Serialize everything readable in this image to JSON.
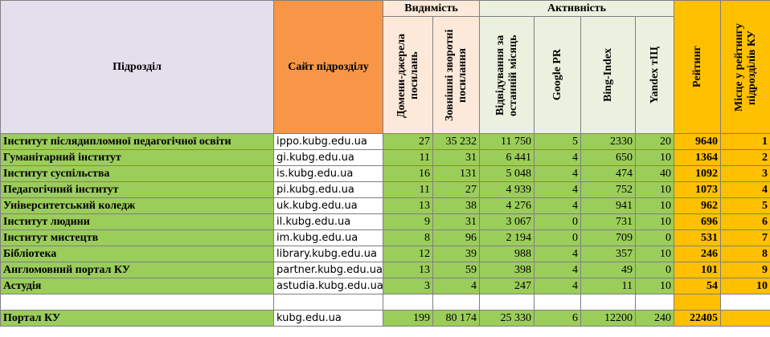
{
  "header": {
    "subdivision": "Підрозділ",
    "site": "Сайт підрозділу",
    "visibility": "Видимість",
    "activity": "Активність",
    "rating": "Рейтинг",
    "place": "Місце у рейтингу підрозділів КУ",
    "cols": {
      "domains": "Домени-джерела посилань",
      "backlinks": "Зовнішні зворотні посилання",
      "visits": "Відвідування за останній місяць",
      "pr": "Google PR",
      "bing": "Bing-Index",
      "tic": "Yandex тІЦ"
    }
  },
  "rows": [
    {
      "name": "Інститут післядипломної педагогічної освіти",
      "site": "ippo.kubg.edu.ua",
      "domains": "27",
      "backlinks": "35 232",
      "visits": "11 750",
      "pr": "5",
      "bing": "2330",
      "tic": "20",
      "rating": "9640",
      "place": "1"
    },
    {
      "name": "Гуманітарний інститут",
      "site": "gi.kubg.edu.ua",
      "domains": "11",
      "backlinks": "31",
      "visits": "6 441",
      "pr": "4",
      "bing": "650",
      "tic": "10",
      "rating": "1364",
      "place": "2"
    },
    {
      "name": "Інститут суспільства",
      "site": "is.kubg.edu.ua",
      "domains": "16",
      "backlinks": "131",
      "visits": "5 048",
      "pr": "4",
      "bing": "474",
      "tic": "40",
      "rating": "1092",
      "place": "3"
    },
    {
      "name": "Педагогічний інститут",
      "site": "pi.kubg.edu.ua",
      "domains": "11",
      "backlinks": "27",
      "visits": "4 939",
      "pr": "4",
      "bing": "752",
      "tic": "10",
      "rating": "1073",
      "place": "4"
    },
    {
      "name": "Університетський коледж",
      "site": "uk.kubg.edu.ua",
      "domains": "13",
      "backlinks": "38",
      "visits": "4 276",
      "pr": "4",
      "bing": "941",
      "tic": "10",
      "rating": "962",
      "place": "5"
    },
    {
      "name": "Інститут людини",
      "site": "il.kubg.edu.ua",
      "domains": "9",
      "backlinks": "31",
      "visits": "3 067",
      "pr": "0",
      "bing": "731",
      "tic": "10",
      "rating": "696",
      "place": "6"
    },
    {
      "name": "Інститут мистецтв",
      "site": "im.kubg.edu.ua",
      "domains": "8",
      "backlinks": "96",
      "visits": "2 194",
      "pr": "0",
      "bing": "709",
      "tic": "0",
      "rating": "531",
      "place": "7"
    },
    {
      "name": "Бібліотека",
      "site": "library.kubg.edu.ua",
      "domains": "12",
      "backlinks": "39",
      "visits": "988",
      "pr": "4",
      "bing": "357",
      "tic": "10",
      "rating": "246",
      "place": "8"
    },
    {
      "name": "Англомовний портал КУ",
      "site": "partner.kubg.edu.ua",
      "domains": "13",
      "backlinks": "59",
      "visits": "398",
      "pr": "4",
      "bing": "49",
      "tic": "0",
      "rating": "101",
      "place": "9"
    },
    {
      "name": "Астудія",
      "site": "astudia.kubg.edu.ua",
      "domains": "3",
      "backlinks": "4",
      "visits": "247",
      "pr": "4",
      "bing": "11",
      "tic": "10",
      "rating": "54",
      "place": "10"
    }
  ],
  "portal": {
    "name": "Портал КУ",
    "site": "kubg.edu.ua",
    "domains": "199",
    "backlinks": "80 174",
    "visits": "25 330",
    "pr": "6",
    "bing": "12200",
    "tic": "240",
    "rating": "22405",
    "place": ""
  }
}
